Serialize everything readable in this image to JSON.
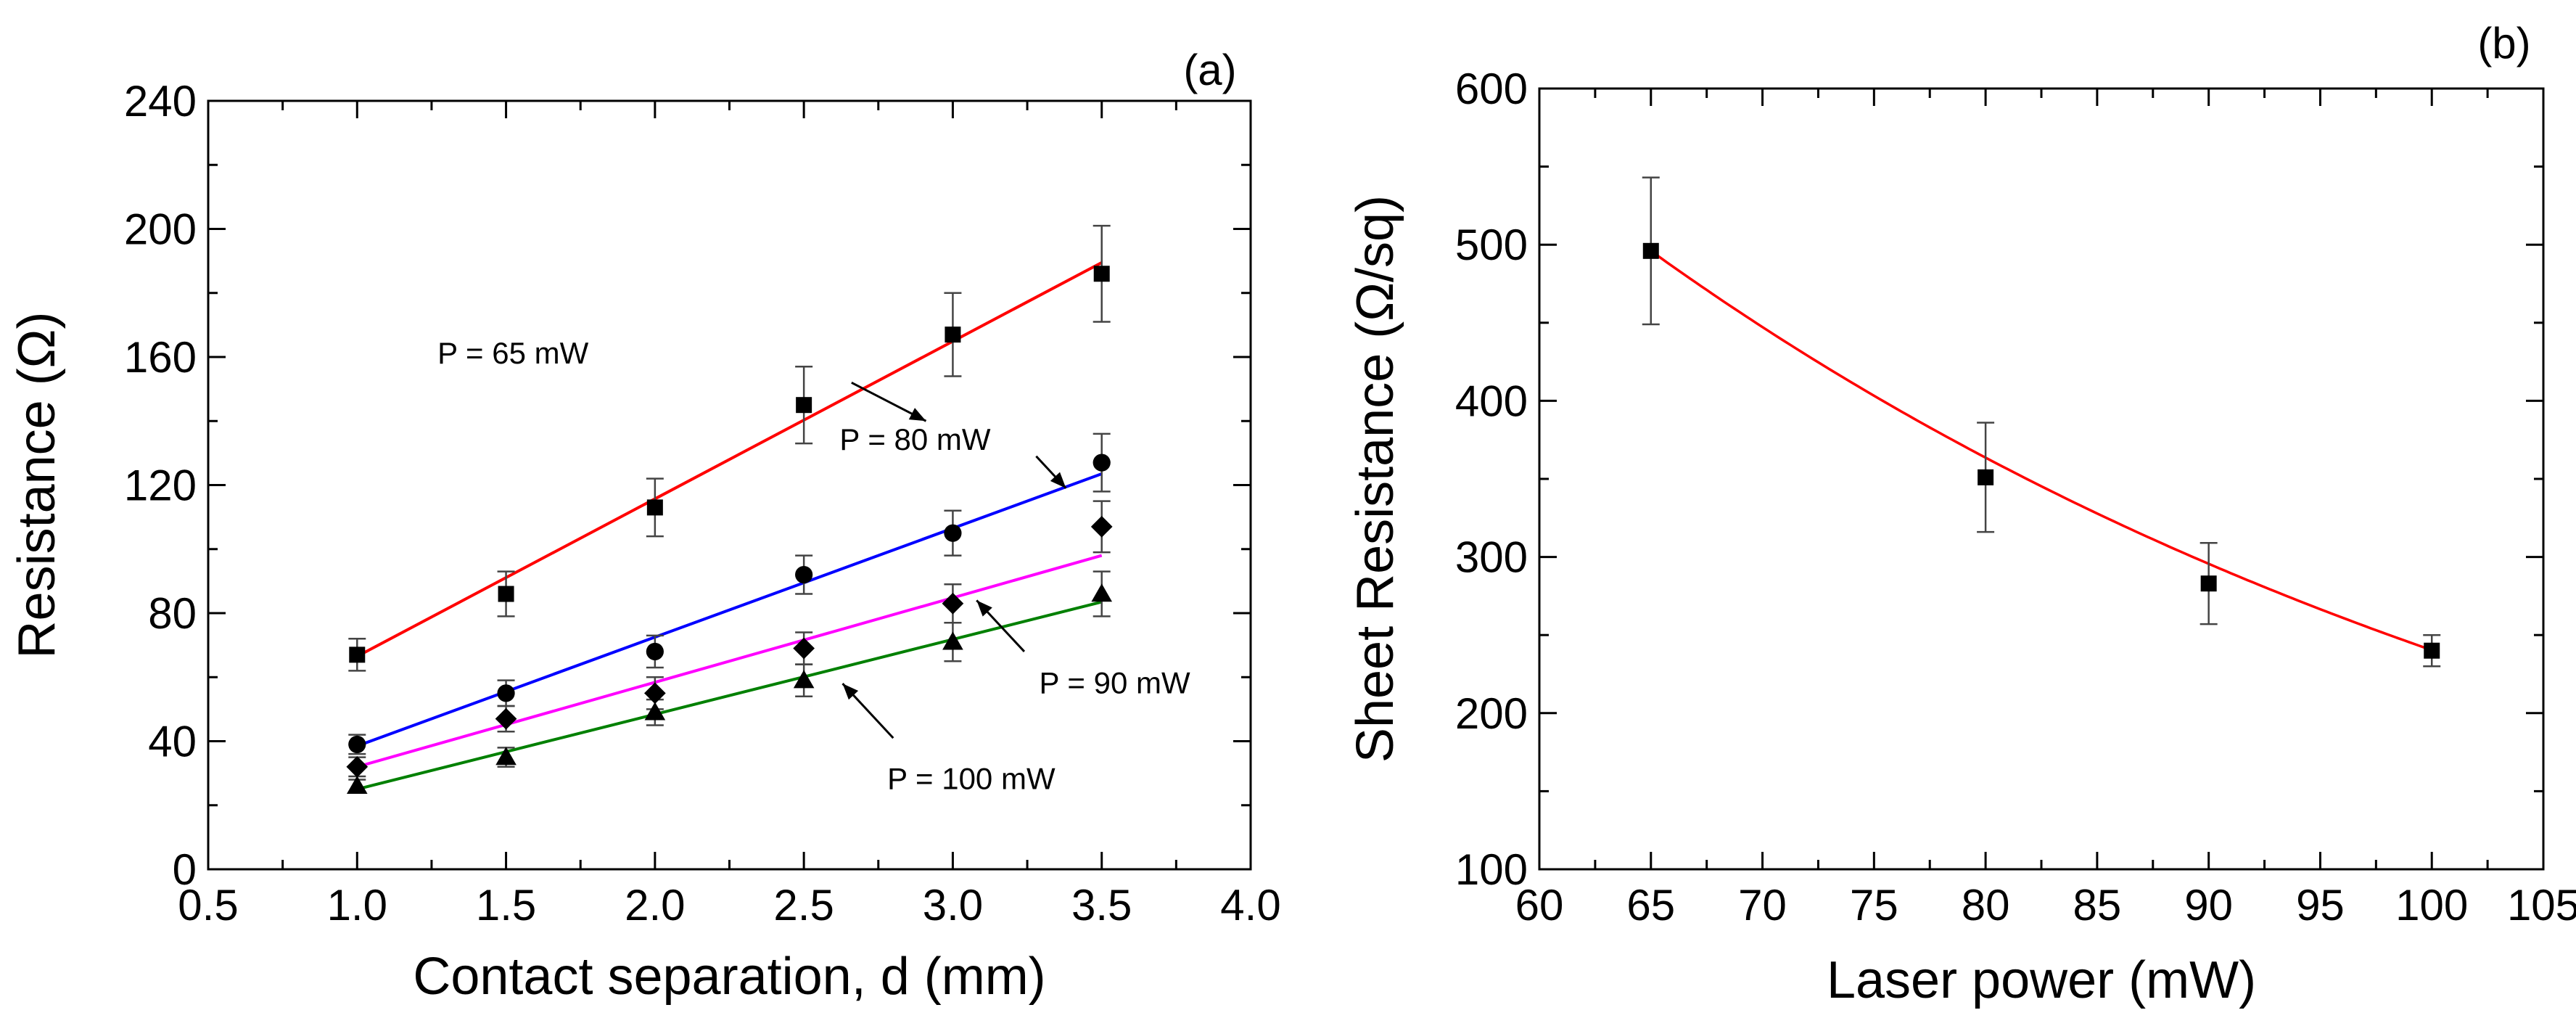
{
  "chart_data": [
    {
      "type": "scatter",
      "panel_label": "(a)",
      "xlabel": "Contact separation, d (mm)",
      "ylabel": "Resistance (Ω)",
      "xlim": [
        0.5,
        4.0
      ],
      "ylim": [
        0,
        240
      ],
      "xticks": [
        "0.5",
        "1.0",
        "1.5",
        "2.0",
        "2.5",
        "3.0",
        "3.5",
        "4.0"
      ],
      "yticks": [
        "0",
        "40",
        "80",
        "120",
        "160",
        "200",
        "240"
      ],
      "grid": false,
      "series": [
        {
          "name": "P = 65 mW",
          "marker": "square",
          "fit_color": "#ff0000",
          "x": [
            1.0,
            1.5,
            2.0,
            2.5,
            3.0,
            3.5
          ],
          "y": [
            67,
            86,
            113,
            145,
            167,
            186
          ],
          "err": [
            5,
            7,
            9,
            12,
            13,
            15
          ],
          "fit": [
            66.5,
            189.5
          ],
          "annotation": "P = 65 mW"
        },
        {
          "name": "P = 80 mW",
          "marker": "circle",
          "fit_color": "#0000ff",
          "x": [
            1.0,
            1.5,
            2.0,
            2.5,
            3.0,
            3.5
          ],
          "y": [
            39,
            55,
            68,
            92,
            105,
            127
          ],
          "err": [
            3,
            4,
            5,
            6,
            7,
            9
          ],
          "fit": [
            38.5,
            123.5
          ],
          "annotation": "P = 80 mW"
        },
        {
          "name": "P = 90 mW",
          "marker": "diamond",
          "fit_color": "#ff00ff",
          "x": [
            1.0,
            1.5,
            2.0,
            2.5,
            3.0,
            3.5
          ],
          "y": [
            32,
            47,
            55,
            69,
            83,
            107
          ],
          "err": [
            3,
            4,
            5,
            5,
            6,
            8
          ],
          "fit": [
            32.0,
            98.0
          ],
          "annotation": "P = 90 mW"
        },
        {
          "name": "P = 100 mW",
          "marker": "triangle",
          "fit_color": "#008000",
          "x": [
            1.0,
            1.5,
            2.0,
            2.5,
            3.0,
            3.5
          ],
          "y": [
            26,
            35,
            49,
            59,
            71,
            86
          ],
          "err": [
            2,
            3,
            4,
            5,
            6,
            7
          ],
          "fit": [
            25.0,
            83.5
          ],
          "annotation": "P = 100 mW"
        }
      ]
    },
    {
      "type": "scatter",
      "panel_label": "(b)",
      "xlabel": "Laser power (mW)",
      "ylabel": "Sheet Resistance (Ω/sq)",
      "xlim": [
        60,
        105
      ],
      "ylim": [
        100,
        600
      ],
      "xticks": [
        "60",
        "65",
        "70",
        "75",
        "80",
        "85",
        "90",
        "95",
        "100",
        "105"
      ],
      "yticks": [
        "100",
        "200",
        "300",
        "400",
        "500",
        "600"
      ],
      "grid": false,
      "series": [
        {
          "name": "Sheet resistance",
          "marker": "square",
          "fit_color": "#ff0000",
          "x": [
            65,
            80,
            90,
            100
          ],
          "y": [
            496,
            351,
            283,
            240
          ],
          "err": [
            47,
            35,
            26,
            10
          ]
        }
      ],
      "fit_curve": {
        "type": "exponential",
        "x": [
          65,
          100
        ],
        "y0": 496,
        "decay": 0.0207
      }
    }
  ]
}
